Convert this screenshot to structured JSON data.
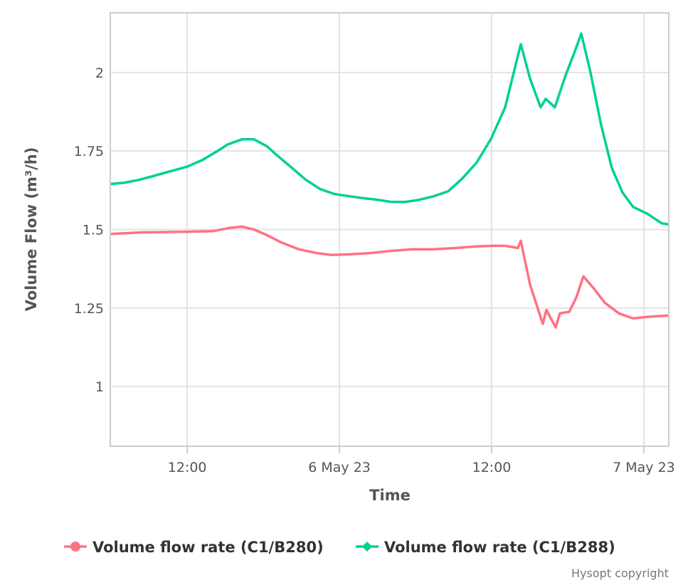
{
  "chart_data": {
    "type": "line",
    "title": "",
    "xlabel": "Time",
    "ylabel": "Volume Flow (m³/h)",
    "xlim": [
      "2023-05-05 05:56",
      "2023-05-07 01:58"
    ],
    "ylim": [
      0.81,
      2.19
    ],
    "grid": true,
    "legend_position": "bottom",
    "x_ticks": [
      {
        "t": "2023-05-05 12:00",
        "label": "12:00"
      },
      {
        "t": "2023-05-06 00:00",
        "label": "6 May 23"
      },
      {
        "t": "2023-05-06 12:00",
        "label": "12:00"
      },
      {
        "t": "2023-05-07 00:00",
        "label": "7 May 23"
      }
    ],
    "y_ticks": [
      {
        "v": 1,
        "label": "1"
      },
      {
        "v": 1.25,
        "label": "1.25"
      },
      {
        "v": 1.5,
        "label": "1.5"
      },
      {
        "v": 1.75,
        "label": "1.75"
      },
      {
        "v": 2,
        "label": "2"
      }
    ],
    "series": [
      {
        "name": "Volume flow rate (C1/B280)",
        "color": "#ff7280",
        "marker": "circle",
        "points": [
          [
            "2023-05-05 05:56",
            1.486
          ],
          [
            "2023-05-05 08:28",
            1.491
          ],
          [
            "2023-05-05 12:00",
            1.493
          ],
          [
            "2023-05-05 14:04",
            1.495
          ],
          [
            "2023-05-05 15:18",
            1.505
          ],
          [
            "2023-05-05 16:19",
            1.509
          ],
          [
            "2023-05-05 17:16",
            1.5
          ],
          [
            "2023-05-05 18:17",
            1.482
          ],
          [
            "2023-05-05 19:24",
            1.459
          ],
          [
            "2023-05-05 20:48",
            1.437
          ],
          [
            "2023-05-05 22:12",
            1.425
          ],
          [
            "2023-05-05 23:20",
            1.419
          ],
          [
            "2023-05-06 00:44",
            1.421
          ],
          [
            "2023-05-06 02:25",
            1.425
          ],
          [
            "2023-05-06 04:05",
            1.432
          ],
          [
            "2023-05-06 05:46",
            1.437
          ],
          [
            "2023-05-06 07:27",
            1.437
          ],
          [
            "2023-05-06 09:08",
            1.441
          ],
          [
            "2023-05-06 10:49",
            1.446
          ],
          [
            "2023-05-06 12:03",
            1.448
          ],
          [
            "2023-05-06 13:04",
            1.448
          ],
          [
            "2023-05-06 14:04",
            1.441
          ],
          [
            "2023-05-06 14:18",
            1.464
          ],
          [
            "2023-05-06 15:02",
            1.324
          ],
          [
            "2023-05-06 16:02",
            1.2
          ],
          [
            "2023-05-06 16:19",
            1.244
          ],
          [
            "2023-05-06 17:03",
            1.188
          ],
          [
            "2023-05-06 17:23",
            1.233
          ],
          [
            "2023-05-06 18:07",
            1.238
          ],
          [
            "2023-05-06 18:40",
            1.283
          ],
          [
            "2023-05-06 19:14",
            1.351
          ],
          [
            "2023-05-06 20:04",
            1.312
          ],
          [
            "2023-05-06 20:55",
            1.267
          ],
          [
            "2023-05-06 22:02",
            1.233
          ],
          [
            "2023-05-06 23:09",
            1.217
          ],
          [
            "2023-05-07 00:17",
            1.222
          ],
          [
            "2023-05-07 01:07",
            1.224
          ],
          [
            "2023-05-07 01:58",
            1.226
          ]
        ]
      },
      {
        "name": "Volume flow rate (C1/B288)",
        "color": "#00cf98",
        "marker": "diamond",
        "points": [
          [
            "2023-05-05 05:56",
            1.645
          ],
          [
            "2023-05-05 07:04",
            1.649
          ],
          [
            "2023-05-05 08:11",
            1.658
          ],
          [
            "2023-05-05 09:18",
            1.67
          ],
          [
            "2023-05-05 10:43",
            1.686
          ],
          [
            "2023-05-05 12:00",
            1.7
          ],
          [
            "2023-05-05 13:14",
            1.722
          ],
          [
            "2023-05-05 14:21",
            1.749
          ],
          [
            "2023-05-05 15:12",
            1.771
          ],
          [
            "2023-05-05 16:19",
            1.787
          ],
          [
            "2023-05-05 17:16",
            1.787
          ],
          [
            "2023-05-05 18:17",
            1.765
          ],
          [
            "2023-05-05 19:07",
            1.735
          ],
          [
            "2023-05-05 20:14",
            1.697
          ],
          [
            "2023-05-05 21:22",
            1.658
          ],
          [
            "2023-05-05 22:29",
            1.629
          ],
          [
            "2023-05-05 23:36",
            1.613
          ],
          [
            "2023-05-06 00:44",
            1.606
          ],
          [
            "2023-05-06 01:51",
            1.6
          ],
          [
            "2023-05-06 02:58",
            1.595
          ],
          [
            "2023-05-06 04:05",
            1.588
          ],
          [
            "2023-05-06 05:13",
            1.588
          ],
          [
            "2023-05-06 06:20",
            1.595
          ],
          [
            "2023-05-06 07:27",
            1.606
          ],
          [
            "2023-05-06 08:35",
            1.622
          ],
          [
            "2023-05-06 09:42",
            1.663
          ],
          [
            "2023-05-06 10:49",
            1.713
          ],
          [
            "2023-05-06 11:56",
            1.787
          ],
          [
            "2023-05-06 13:04",
            1.889
          ],
          [
            "2023-05-06 14:18",
            2.09
          ],
          [
            "2023-05-06 15:02",
            1.98
          ],
          [
            "2023-05-06 15:52",
            1.889
          ],
          [
            "2023-05-06 16:16",
            1.916
          ],
          [
            "2023-05-06 16:59",
            1.889
          ],
          [
            "2023-05-06 17:50",
            1.991
          ],
          [
            "2023-05-06 18:33",
            2.066
          ],
          [
            "2023-05-06 19:04",
            2.124
          ],
          [
            "2023-05-06 19:47",
            2.002
          ],
          [
            "2023-05-06 20:38",
            1.833
          ],
          [
            "2023-05-06 21:28",
            1.697
          ],
          [
            "2023-05-06 22:19",
            1.618
          ],
          [
            "2023-05-06 23:09",
            1.572
          ],
          [
            "2023-05-07 00:17",
            1.55
          ],
          [
            "2023-05-07 01:24",
            1.52
          ],
          [
            "2023-05-07 01:58",
            1.516
          ]
        ]
      }
    ]
  },
  "credit": "Hysopt copyright"
}
